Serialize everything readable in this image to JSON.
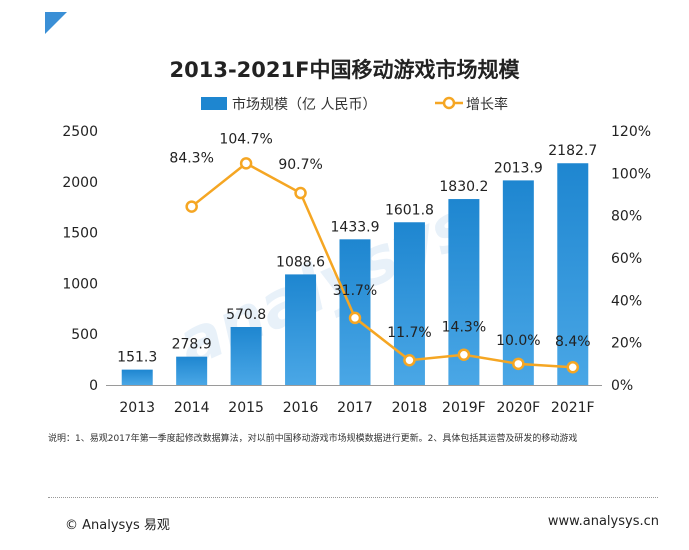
{
  "chart_data": {
    "type": "bar",
    "title": "2013-2021F中国移动游戏市场规模",
    "categories": [
      "2013",
      "2014",
      "2015",
      "2016",
      "2017",
      "2018",
      "2019F",
      "2020F",
      "2021F"
    ],
    "series": [
      {
        "name": "市场规模（亿 人民币）",
        "type": "bar",
        "axis": "left",
        "values": [
          151.3,
          278.9,
          570.8,
          1088.6,
          1433.9,
          1601.8,
          1830.2,
          2013.9,
          2182.7
        ],
        "labels": [
          "151.3",
          "278.9",
          "570.8",
          "1088.6",
          "1433.9",
          "1601.8",
          "1830.2",
          "2013.9",
          "2182.7"
        ],
        "color": "#1e86d0"
      },
      {
        "name": "增长率",
        "type": "line",
        "axis": "right",
        "values": [
          null,
          84.3,
          104.7,
          90.7,
          31.7,
          11.7,
          14.3,
          10.0,
          8.4
        ],
        "labels": [
          "",
          "84.3%",
          "104.7%",
          "90.7%",
          "31.7%",
          "11.7%",
          "14.3%",
          "10.0%",
          "8.4%"
        ],
        "color": "#f5a623"
      }
    ],
    "y_left": {
      "ylim": [
        0,
        2500
      ],
      "ticks": [
        "0",
        "500",
        "1000",
        "1500",
        "2000",
        "2500"
      ]
    },
    "y_right": {
      "ylim": [
        0,
        120
      ],
      "ticks": [
        "0%",
        "20%",
        "40%",
        "60%",
        "80%",
        "100%",
        "120%"
      ]
    },
    "grid": false,
    "legend": "top-center"
  },
  "note": "说明：1、易观2017年第一季度起修改数据算法，对以前中国移动游戏市场规模数据进行更新。2、具体包括其运营及研发的移动游戏",
  "footer": {
    "copyright": "© Analysys 易观",
    "url": "www.analysys.cn"
  },
  "colors": {
    "accent": "#1e86d0",
    "line": "#f5a623",
    "corner": "#3a8fd6"
  }
}
